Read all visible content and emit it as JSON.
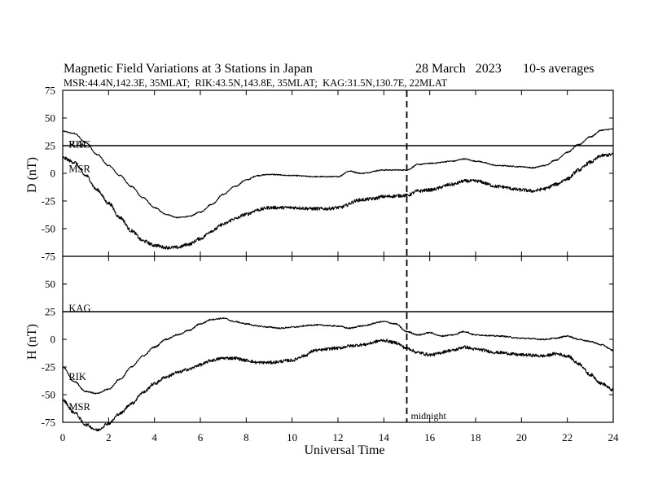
{
  "header": {
    "title": "Magnetic Field Variations at 3 Stations in Japan",
    "date": "28 March   2023",
    "averaging": "10-s averages",
    "stations": "MSR:44.4N,142.3E, 35MLAT;  RIK:43.5N,143.8E, 35MLAT;  KAG:31.5N,130.7E, 22MLAT"
  },
  "chart_data": [
    {
      "type": "line",
      "ylabel": "D (nT)",
      "xlabel": "",
      "xlim": [
        0,
        24
      ],
      "ylim": [
        -75,
        75
      ],
      "yticks": [
        75,
        50,
        25,
        0,
        -25,
        -50,
        -75
      ],
      "xticks": [],
      "series": [
        {
          "name": "KAG",
          "color": "#000000",
          "x": [
            0,
            24
          ],
          "y": [
            25,
            25
          ],
          "noise": 0
        },
        {
          "name": "RIK",
          "color": "#000000",
          "x": [
            0,
            0.5,
            1,
            1.5,
            2,
            2.5,
            3,
            3.5,
            4,
            4.5,
            5,
            5.5,
            6,
            6.5,
            7,
            7.5,
            8,
            8.5,
            9,
            10,
            11,
            12,
            12.5,
            13,
            14,
            15,
            15.5,
            16,
            17,
            17.5,
            18,
            19,
            20,
            20.5,
            21,
            21.5,
            22,
            22.5,
            23,
            23.5,
            24
          ],
          "y": [
            38,
            36,
            28,
            17,
            7,
            -2,
            -12,
            -22,
            -31,
            -37,
            -40,
            -39,
            -35,
            -28,
            -19,
            -12,
            -6,
            -2,
            -1,
            -2,
            -3,
            -3,
            2,
            0,
            3,
            3,
            8,
            9,
            11,
            13,
            11,
            7,
            6,
            5,
            7,
            12,
            19,
            26,
            33,
            39,
            40
          ],
          "noise": 0.5
        },
        {
          "name": "MSR",
          "color": "#000000",
          "x": [
            0,
            0.5,
            1,
            1.5,
            2,
            2.5,
            3,
            3.5,
            4,
            4.5,
            5,
            5.5,
            6,
            6.5,
            7,
            7.5,
            8,
            8.5,
            9,
            10,
            11,
            11.5,
            12,
            13,
            13.5,
            14,
            15,
            15.5,
            16,
            17,
            17.5,
            18,
            19,
            20,
            20.5,
            21,
            21.5,
            22,
            22.5,
            23,
            23.5,
            24
          ],
          "y": [
            14,
            10,
            -2,
            -15,
            -27,
            -40,
            -52,
            -61,
            -65,
            -67,
            -67,
            -64,
            -59,
            -52,
            -46,
            -41,
            -37,
            -33,
            -31,
            -31,
            -32,
            -32,
            -31,
            -24,
            -23,
            -21,
            -20,
            -16,
            -15,
            -10,
            -7,
            -7,
            -12,
            -15,
            -16,
            -14,
            -10,
            -5,
            3,
            10,
            16,
            17
          ],
          "noise": 1.5
        }
      ],
      "labels": [
        {
          "text": "KAG",
          "x": 0.12,
          "y": 26
        },
        {
          "text": "RIK",
          "x": 0.12,
          "y": 26
        },
        {
          "text": "MSR",
          "x": 0.12,
          "y": 4
        }
      ]
    },
    {
      "type": "line",
      "ylabel": "H (nT)",
      "xlabel": "Universal Time",
      "xlim": [
        0,
        24
      ],
      "ylim": [
        -75,
        75
      ],
      "yticks": [
        75,
        50,
        25,
        0,
        -25,
        -50,
        -75
      ],
      "xticks": [
        0,
        2,
        4,
        6,
        8,
        10,
        12,
        14,
        16,
        18,
        20,
        22,
        24
      ],
      "series": [
        {
          "name": "KAG",
          "color": "#000000",
          "x": [
            0,
            24
          ],
          "y": [
            25,
            25
          ],
          "noise": 0
        },
        {
          "name": "RIK",
          "color": "#000000",
          "x": [
            0,
            0.5,
            1,
            1.5,
            2,
            2.5,
            3,
            3.5,
            4,
            4.5,
            5,
            5.5,
            6,
            6.5,
            7,
            7.5,
            8,
            8.5,
            9,
            9.5,
            10,
            11,
            12,
            12.5,
            13,
            14,
            14.5,
            15,
            15.5,
            16,
            16.5,
            17,
            17.5,
            18,
            19,
            20,
            21,
            21.5,
            22,
            22.5,
            23,
            23.5,
            24
          ],
          "y": [
            -25,
            -38,
            -47,
            -49,
            -45,
            -36,
            -25,
            -15,
            -7,
            0,
            4,
            8,
            14,
            18,
            19,
            16,
            14,
            12,
            11,
            10,
            11,
            13,
            12,
            10,
            12,
            16,
            14,
            7,
            4,
            6,
            3,
            4,
            7,
            4,
            3,
            1,
            0,
            1,
            3,
            0,
            -2,
            -5,
            -10
          ],
          "noise": 0.6
        },
        {
          "name": "MSR",
          "color": "#000000",
          "x": [
            0,
            0.5,
            1,
            1.5,
            2,
            2.5,
            3,
            3.5,
            4,
            4.5,
            5,
            5.5,
            6,
            6.5,
            7,
            7.5,
            8,
            8.5,
            9,
            10,
            10.5,
            11,
            12,
            12.5,
            13,
            14,
            14.5,
            15,
            15.5,
            16,
            17,
            17.5,
            18,
            19,
            20,
            21,
            21.5,
            22,
            22.5,
            23,
            23.5,
            24
          ],
          "y": [
            -55,
            -66,
            -77,
            -82,
            -76,
            -67,
            -58,
            -48,
            -40,
            -34,
            -30,
            -27,
            -23,
            -19,
            -17,
            -17,
            -19,
            -21,
            -21,
            -19,
            -15,
            -10,
            -8,
            -6,
            -5,
            -1,
            -3,
            -8,
            -12,
            -14,
            -10,
            -7,
            -9,
            -12,
            -14,
            -15,
            -13,
            -15,
            -22,
            -32,
            -40,
            -46
          ],
          "noise": 1.4
        }
      ],
      "labels": [
        {
          "text": "KAG",
          "x": 0.12,
          "y": 28
        },
        {
          "text": "RIK",
          "x": 0.12,
          "y": -34
        },
        {
          "text": "MSR",
          "x": 0.12,
          "y": -61
        }
      ],
      "annotations": [
        {
          "text": "midnight",
          "x": 15.2,
          "y": -70
        }
      ]
    }
  ],
  "marker": {
    "x": 15,
    "label": "midnight"
  }
}
